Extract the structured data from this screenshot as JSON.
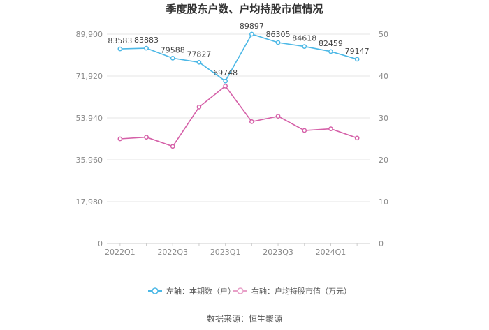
{
  "chart_data": {
    "type": "line",
    "title": "季度股东户数、户均持股市值情况",
    "categories": [
      "2022Q1",
      "2022Q2",
      "2022Q3",
      "2022Q4",
      "2023Q1",
      "2023Q2",
      "2023Q3",
      "2023Q4",
      "2024Q1",
      "2024Q2"
    ],
    "x_tick_labels": [
      "2022Q1",
      "2022Q3",
      "2023Q1",
      "2023Q3",
      "2024Q1"
    ],
    "y_left": {
      "ticks": [
        "0",
        "17,980",
        "35,960",
        "53,940",
        "71,920",
        "89,900"
      ],
      "range": [
        0,
        89900
      ]
    },
    "y_right": {
      "ticks": [
        "0",
        "10",
        "20",
        "30",
        "40",
        "50"
      ],
      "range": [
        0,
        50
      ]
    },
    "series": [
      {
        "name": "左轴：本期数（户）",
        "axis": "left",
        "color": "#4cb8e6",
        "values": [
          83583,
          83883,
          79588,
          77827,
          69748,
          89897,
          86305,
          84618,
          82459,
          79147
        ],
        "labels": [
          "83583",
          "83883",
          "79588",
          "77827",
          "69748",
          "89897",
          "86305",
          "84618",
          "82459",
          "79147"
        ]
      },
      {
        "name": "右轴：户均持股市值（万元）",
        "axis": "right",
        "color": "#d560a8",
        "values": [
          25.0,
          25.4,
          23.2,
          32.6,
          37.6,
          29.1,
          30.4,
          27.0,
          27.4,
          25.2
        ]
      }
    ],
    "grid": true,
    "legend_position": "bottom"
  },
  "source": "数据来源：恒生聚源"
}
